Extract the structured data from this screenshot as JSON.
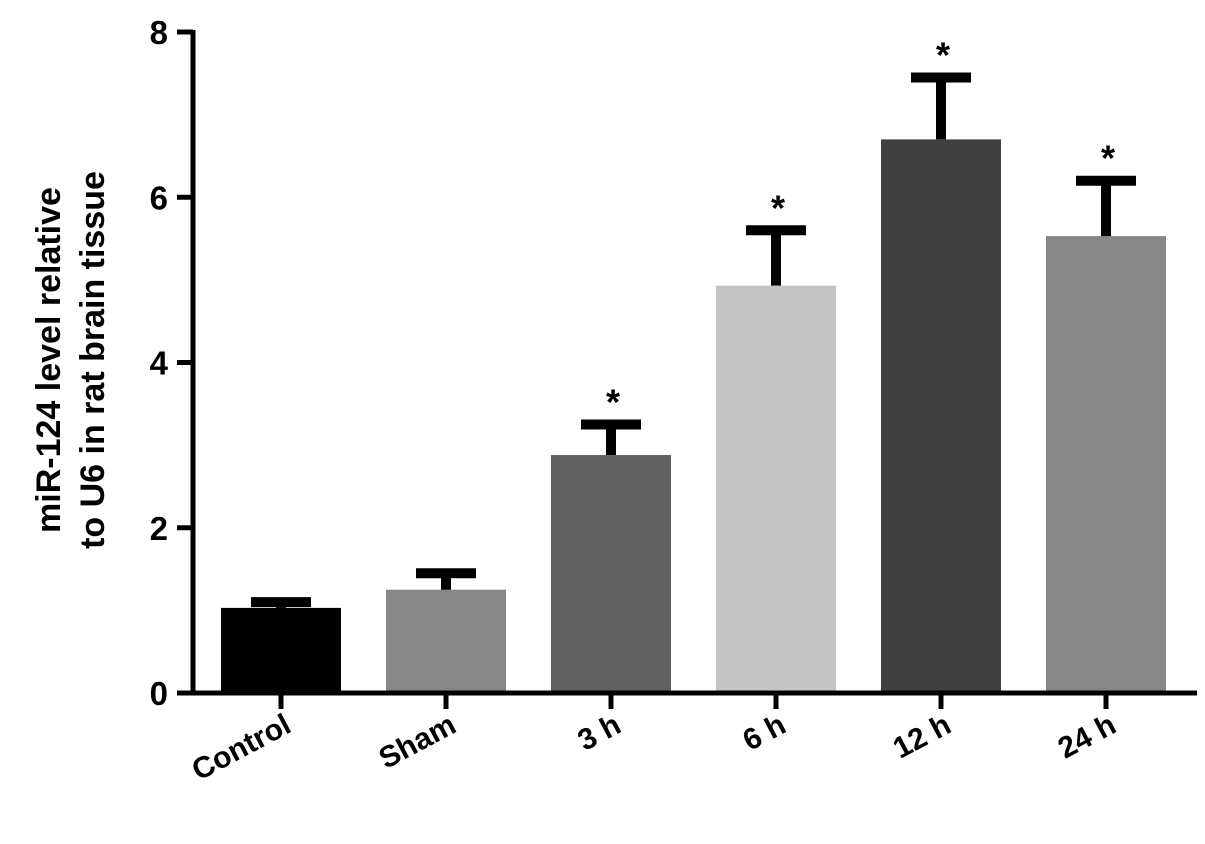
{
  "chart_data": {
    "type": "bar",
    "title": "",
    "xlabel": "",
    "ylabel_lines": [
      "miR-124 level relative",
      "to U6 in rat brain tissue"
    ],
    "categories": [
      "Control",
      "Sham",
      "3 h",
      "6 h",
      "12 h",
      "24 h"
    ],
    "values": [
      1.03,
      1.25,
      2.88,
      4.93,
      6.7,
      5.53
    ],
    "error_upper": [
      1.1,
      1.45,
      3.25,
      5.6,
      7.45,
      6.2
    ],
    "significance": [
      "",
      "",
      "*",
      "*",
      "*",
      "*"
    ],
    "bar_colors": [
      "#000000",
      "#878787",
      "#616161",
      "#c4c4c4",
      "#404040",
      "#878787"
    ],
    "ylim": [
      0,
      8
    ],
    "yticks": [
      0,
      2,
      4,
      6,
      8
    ],
    "grid": false,
    "legend": "none"
  }
}
